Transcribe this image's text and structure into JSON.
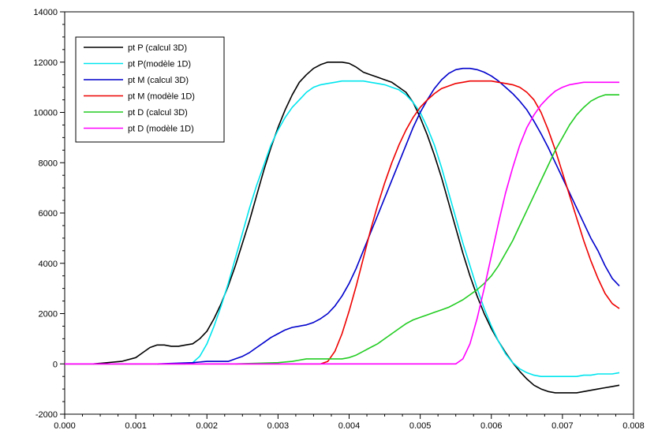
{
  "chart_data": {
    "type": "line",
    "title": "",
    "xlabel": "",
    "ylabel": "",
    "xlim": [
      0.0,
      0.008
    ],
    "ylim": [
      -2000,
      14000
    ],
    "x_ticks": [
      0.0,
      0.001,
      0.002,
      0.003,
      0.004,
      0.005,
      0.006,
      0.007,
      0.008
    ],
    "x_tick_labels": [
      "0.000",
      "0.001",
      "0.002",
      "0.003",
      "0.004",
      "0.005",
      "0.006",
      "0.007",
      "0.008"
    ],
    "y_ticks": [
      -2000,
      0,
      2000,
      4000,
      6000,
      8000,
      10000,
      12000,
      14000
    ],
    "y_tick_labels": [
      "-2000",
      "0",
      "2000",
      "4000",
      "6000",
      "8000",
      "10000",
      "12000",
      "14000"
    ],
    "grid": false,
    "legend_position": "top-left",
    "series": [
      {
        "name": "pt P (calcul 3D)",
        "color": "#000000",
        "x": [
          0.0004,
          0.0008,
          0.001,
          0.0011,
          0.0012,
          0.0013,
          0.0014,
          0.0015,
          0.0016,
          0.0017,
          0.0018,
          0.0019,
          0.002,
          0.0021,
          0.0022,
          0.0023,
          0.0024,
          0.0025,
          0.0026,
          0.0027,
          0.0028,
          0.0029,
          0.003,
          0.0031,
          0.0032,
          0.0033,
          0.0034,
          0.0035,
          0.0036,
          0.0037,
          0.0038,
          0.0039,
          0.004,
          0.0041,
          0.0042,
          0.0043,
          0.0044,
          0.0045,
          0.0046,
          0.0047,
          0.0048,
          0.0049,
          0.005,
          0.0051,
          0.0052,
          0.0053,
          0.0054,
          0.0055,
          0.0056,
          0.0057,
          0.0058,
          0.0059,
          0.006,
          0.0061,
          0.0062,
          0.0063,
          0.0064,
          0.0065,
          0.0066,
          0.0067,
          0.0068,
          0.0069,
          0.007,
          0.0071,
          0.0072,
          0.0073,
          0.0074,
          0.0075,
          0.0076,
          0.0077,
          0.0078
        ],
        "y": [
          0,
          100,
          250,
          450,
          650,
          750,
          750,
          700,
          700,
          750,
          800,
          1000,
          1300,
          1800,
          2400,
          3100,
          3900,
          4800,
          5700,
          6700,
          7700,
          8600,
          9400,
          10100,
          10700,
          11200,
          11500,
          11750,
          11900,
          12000,
          12000,
          12000,
          11950,
          11800,
          11600,
          11500,
          11400,
          11300,
          11200,
          11000,
          10800,
          10400,
          9800,
          9100,
          8300,
          7400,
          6400,
          5400,
          4400,
          3500,
          2700,
          2000,
          1400,
          900,
          450,
          50,
          -300,
          -600,
          -850,
          -1000,
          -1100,
          -1150,
          -1150,
          -1150,
          -1150,
          -1100,
          -1050,
          -1000,
          -950,
          -900,
          -850
        ]
      },
      {
        "name": "pt P(modèle 1D)",
        "color": "#00e5ee",
        "x": [
          0.0,
          0.001,
          0.0017,
          0.0018,
          0.0019,
          0.002,
          0.0021,
          0.0022,
          0.0023,
          0.0024,
          0.0025,
          0.0026,
          0.0027,
          0.0028,
          0.0029,
          0.003,
          0.0031,
          0.0032,
          0.0033,
          0.0034,
          0.0035,
          0.0036,
          0.0037,
          0.0038,
          0.0039,
          0.004,
          0.0041,
          0.0042,
          0.0043,
          0.0044,
          0.0045,
          0.0046,
          0.0047,
          0.0048,
          0.0049,
          0.005,
          0.0051,
          0.0052,
          0.0053,
          0.0054,
          0.0055,
          0.0056,
          0.0057,
          0.0058,
          0.0059,
          0.006,
          0.0061,
          0.0062,
          0.0063,
          0.0064,
          0.0065,
          0.0066,
          0.0067,
          0.0068,
          0.0069,
          0.007,
          0.0071,
          0.0072,
          0.0073,
          0.0074,
          0.0075,
          0.0076,
          0.0077,
          0.0078
        ],
        "y": [
          0,
          0,
          0,
          50,
          300,
          800,
          1500,
          2300,
          3200,
          4200,
          5200,
          6200,
          7100,
          7900,
          8700,
          9300,
          9800,
          10200,
          10500,
          10800,
          11000,
          11100,
          11150,
          11200,
          11250,
          11250,
          11250,
          11250,
          11200,
          11150,
          11100,
          11000,
          10900,
          10700,
          10400,
          10000,
          9400,
          8700,
          7800,
          6800,
          5800,
          4800,
          3900,
          3000,
          2200,
          1500,
          900,
          400,
          50,
          -200,
          -350,
          -450,
          -500,
          -500,
          -500,
          -500,
          -500,
          -500,
          -450,
          -450,
          -400,
          -400,
          -400,
          -350
        ]
      },
      {
        "name": "pt M (calcul 3D)",
        "color": "#0000cc",
        "x": [
          0.0013,
          0.0018,
          0.002,
          0.0022,
          0.0023,
          0.0024,
          0.0025,
          0.0026,
          0.0027,
          0.0028,
          0.0029,
          0.003,
          0.0031,
          0.0032,
          0.0033,
          0.0034,
          0.0035,
          0.0036,
          0.0037,
          0.0038,
          0.0039,
          0.004,
          0.0041,
          0.0042,
          0.0043,
          0.0044,
          0.0045,
          0.0046,
          0.0047,
          0.0048,
          0.0049,
          0.005,
          0.0051,
          0.0052,
          0.0053,
          0.0054,
          0.0055,
          0.0056,
          0.0057,
          0.0058,
          0.0059,
          0.006,
          0.0061,
          0.0062,
          0.0063,
          0.0064,
          0.0065,
          0.0066,
          0.0067,
          0.0068,
          0.0069,
          0.007,
          0.0071,
          0.0072,
          0.0073,
          0.0074,
          0.0075,
          0.0076,
          0.0077,
          0.0078
        ],
        "y": [
          0,
          50,
          100,
          100,
          100,
          200,
          300,
          450,
          650,
          850,
          1050,
          1200,
          1350,
          1450,
          1500,
          1550,
          1650,
          1800,
          2000,
          2300,
          2700,
          3200,
          3800,
          4500,
          5200,
          5900,
          6600,
          7300,
          8000,
          8700,
          9400,
          10000,
          10500,
          10950,
          11300,
          11550,
          11700,
          11750,
          11750,
          11700,
          11600,
          11450,
          11250,
          11000,
          10750,
          10450,
          10100,
          9650,
          9150,
          8600,
          8000,
          7400,
          6800,
          6200,
          5600,
          5000,
          4500,
          3900,
          3400,
          3100
        ]
      },
      {
        "name": "pt M (modèle 1D)",
        "color": "#ee0000",
        "x": [
          0.0,
          0.0036,
          0.0037,
          0.0038,
          0.0039,
          0.004,
          0.0041,
          0.0042,
          0.0043,
          0.0044,
          0.0045,
          0.0046,
          0.0047,
          0.0048,
          0.0049,
          0.005,
          0.0051,
          0.0052,
          0.0053,
          0.0054,
          0.0055,
          0.0056,
          0.0057,
          0.0058,
          0.0059,
          0.006,
          0.0061,
          0.0062,
          0.0063,
          0.0064,
          0.0065,
          0.0066,
          0.0067,
          0.0068,
          0.0069,
          0.007,
          0.0071,
          0.0072,
          0.0073,
          0.0074,
          0.0075,
          0.0076,
          0.0077,
          0.0078
        ],
        "y": [
          0,
          0,
          100,
          500,
          1200,
          2100,
          3100,
          4200,
          5300,
          6300,
          7200,
          8000,
          8700,
          9300,
          9800,
          10200,
          10500,
          10750,
          10950,
          11050,
          11150,
          11200,
          11250,
          11250,
          11250,
          11250,
          11200,
          11150,
          11100,
          11000,
          10800,
          10500,
          10000,
          9300,
          8500,
          7600,
          6700,
          5800,
          4900,
          4100,
          3400,
          2800,
          2400,
          2200
        ]
      },
      {
        "name": "pt D (calcul 3D)",
        "color": "#22cc22",
        "x": [
          0.0024,
          0.003,
          0.0032,
          0.0033,
          0.0034,
          0.0035,
          0.0036,
          0.0037,
          0.0038,
          0.0039,
          0.004,
          0.0041,
          0.0042,
          0.0043,
          0.0044,
          0.0045,
          0.0046,
          0.0047,
          0.0048,
          0.0049,
          0.005,
          0.0051,
          0.0052,
          0.0053,
          0.0054,
          0.0055,
          0.0056,
          0.0057,
          0.0058,
          0.0059,
          0.006,
          0.0061,
          0.0062,
          0.0063,
          0.0064,
          0.0065,
          0.0066,
          0.0067,
          0.0068,
          0.0069,
          0.007,
          0.0071,
          0.0072,
          0.0073,
          0.0074,
          0.0075,
          0.0076,
          0.0077,
          0.0078
        ],
        "y": [
          0,
          50,
          100,
          150,
          200,
          200,
          200,
          200,
          200,
          200,
          250,
          350,
          500,
          650,
          800,
          1000,
          1200,
          1400,
          1600,
          1750,
          1850,
          1950,
          2050,
          2150,
          2250,
          2400,
          2550,
          2750,
          2950,
          3200,
          3500,
          3900,
          4400,
          4900,
          5500,
          6100,
          6700,
          7300,
          7900,
          8500,
          9000,
          9500,
          9900,
          10200,
          10450,
          10600,
          10700,
          10700,
          10700
        ]
      },
      {
        "name": "pt D (modèle 1D)",
        "color": "#ff00ff",
        "x": [
          0.0,
          0.0055,
          0.0056,
          0.0057,
          0.0058,
          0.0059,
          0.006,
          0.0061,
          0.0062,
          0.0063,
          0.0064,
          0.0065,
          0.0066,
          0.0067,
          0.0068,
          0.0069,
          0.007,
          0.0071,
          0.0072,
          0.0073,
          0.0074,
          0.0075,
          0.0076,
          0.0077,
          0.0078
        ],
        "y": [
          0,
          0,
          200,
          800,
          1800,
          3000,
          4300,
          5600,
          6800,
          7800,
          8700,
          9400,
          9900,
          10300,
          10600,
          10850,
          11000,
          11100,
          11150,
          11200,
          11200,
          11200,
          11200,
          11200,
          11200
        ]
      }
    ]
  }
}
